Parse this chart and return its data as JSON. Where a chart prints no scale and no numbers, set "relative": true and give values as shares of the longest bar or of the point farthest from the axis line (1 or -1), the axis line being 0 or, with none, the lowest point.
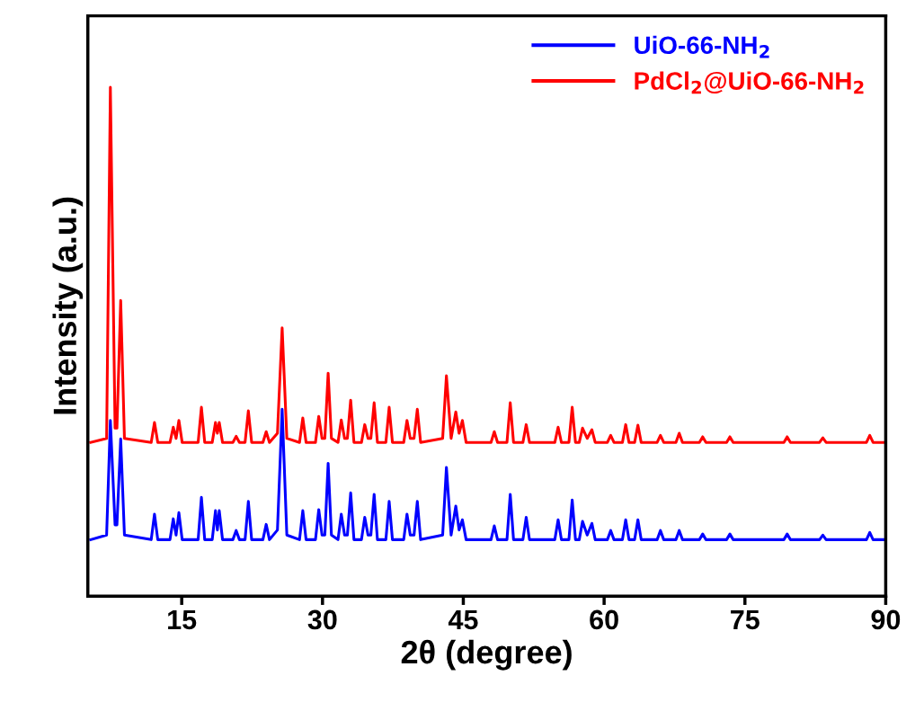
{
  "chart_data": {
    "type": "line",
    "relative": true,
    "xlabel": "2θ (degree)",
    "ylabel": "Intensity (a.u.)",
    "xlim": [
      5,
      90
    ],
    "xticks": [
      15,
      30,
      45,
      60,
      75,
      90
    ],
    "grid": false,
    "legend": "top right",
    "marker": "none",
    "line_style": "solid",
    "x": [
      5.3,
      7.0,
      7.4,
      7.9,
      8.1,
      8.5,
      8.9,
      11.75,
      12.1,
      12.45,
      13.75,
      14.1,
      14.4,
      14.7,
      15.05,
      16.75,
      17.1,
      17.45,
      18.25,
      18.6,
      18.8,
      19.0,
      19.35,
      20.45,
      20.8,
      21.15,
      21.75,
      22.1,
      22.45,
      23.65,
      24.0,
      24.35,
      25.2,
      25.7,
      26.2,
      27.55,
      27.9,
      28.25,
      29.25,
      29.6,
      29.95,
      30.25,
      30.6,
      30.95,
      31.65,
      32.0,
      32.35,
      32.65,
      33.0,
      33.35,
      34.15,
      34.5,
      34.85,
      35.15,
      35.5,
      35.85,
      36.75,
      37.1,
      37.45,
      38.65,
      39.0,
      39.35,
      39.75,
      40.1,
      40.45,
      42.8,
      43.2,
      43.7,
      44.2,
      44.55,
      44.9,
      45.3,
      47.95,
      48.3,
      48.65,
      49.65,
      50.0,
      50.35,
      51.35,
      51.7,
      52.05,
      54.75,
      55.1,
      55.45,
      56.25,
      56.6,
      56.95,
      57.35,
      57.7,
      58.2,
      58.7,
      59.05,
      60.35,
      60.7,
      61.05,
      61.95,
      62.3,
      62.65,
      63.25,
      63.6,
      63.95,
      65.65,
      66.0,
      66.35,
      67.65,
      68.0,
      68.35,
      70.15,
      70.5,
      70.85,
      73.05,
      73.4,
      73.75,
      79.15,
      79.5,
      79.85,
      82.95,
      83.3,
      83.65,
      87.95,
      88.3,
      88.65,
      89.8
    ],
    "series": [
      {
        "name": "UiO-66-NH$_{2}$",
        "color": "#0000ff",
        "values": [
          0.111,
          0.12,
          0.345,
          0.14,
          0.14,
          0.309,
          0.12,
          0.111,
          0.161,
          0.111,
          0.111,
          0.152,
          0.12,
          0.164,
          0.111,
          0.111,
          0.194,
          0.111,
          0.111,
          0.168,
          0.13,
          0.168,
          0.111,
          0.111,
          0.129,
          0.111,
          0.111,
          0.186,
          0.111,
          0.111,
          0.141,
          0.111,
          0.13,
          0.367,
          0.12,
          0.111,
          0.168,
          0.111,
          0.111,
          0.17,
          0.12,
          0.12,
          0.261,
          0.12,
          0.111,
          0.161,
          0.12,
          0.12,
          0.203,
          0.111,
          0.111,
          0.155,
          0.12,
          0.12,
          0.2,
          0.111,
          0.111,
          0.186,
          0.111,
          0.111,
          0.161,
          0.12,
          0.12,
          0.186,
          0.111,
          0.12,
          0.253,
          0.12,
          0.177,
          0.13,
          0.15,
          0.111,
          0.111,
          0.138,
          0.111,
          0.111,
          0.2,
          0.111,
          0.111,
          0.155,
          0.111,
          0.111,
          0.15,
          0.111,
          0.111,
          0.189,
          0.111,
          0.111,
          0.147,
          0.12,
          0.143,
          0.111,
          0.111,
          0.129,
          0.111,
          0.111,
          0.15,
          0.111,
          0.111,
          0.15,
          0.111,
          0.111,
          0.129,
          0.111,
          0.111,
          0.129,
          0.111,
          0.111,
          0.122,
          0.111,
          0.111,
          0.122,
          0.111,
          0.111,
          0.122,
          0.111,
          0.111,
          0.12,
          0.111,
          0.111,
          0.125,
          0.111,
          0.111
        ]
      },
      {
        "name": "PdCl$_{2}$@UiO-66-NH$_{2}$",
        "color": "#ff0000",
        "values": [
          0.302,
          0.31,
          1.0,
          0.33,
          0.33,
          0.581,
          0.31,
          0.302,
          0.341,
          0.302,
          0.302,
          0.332,
          0.31,
          0.345,
          0.302,
          0.302,
          0.371,
          0.302,
          0.302,
          0.341,
          0.32,
          0.341,
          0.302,
          0.302,
          0.314,
          0.302,
          0.302,
          0.364,
          0.302,
          0.302,
          0.323,
          0.302,
          0.32,
          0.527,
          0.31,
          0.302,
          0.35,
          0.302,
          0.302,
          0.353,
          0.31,
          0.31,
          0.438,
          0.31,
          0.302,
          0.346,
          0.31,
          0.31,
          0.385,
          0.302,
          0.302,
          0.337,
          0.31,
          0.31,
          0.38,
          0.302,
          0.302,
          0.371,
          0.302,
          0.302,
          0.345,
          0.31,
          0.31,
          0.367,
          0.302,
          0.31,
          0.433,
          0.31,
          0.362,
          0.32,
          0.345,
          0.302,
          0.302,
          0.323,
          0.302,
          0.302,
          0.38,
          0.302,
          0.302,
          0.337,
          0.302,
          0.302,
          0.332,
          0.302,
          0.302,
          0.371,
          0.302,
          0.302,
          0.33,
          0.31,
          0.327,
          0.302,
          0.302,
          0.316,
          0.302,
          0.302,
          0.337,
          0.302,
          0.302,
          0.336,
          0.302,
          0.302,
          0.316,
          0.302,
          0.302,
          0.32,
          0.302,
          0.302,
          0.313,
          0.302,
          0.302,
          0.313,
          0.302,
          0.302,
          0.313,
          0.302,
          0.302,
          0.311,
          0.302,
          0.302,
          0.316,
          0.302,
          0.302
        ]
      }
    ]
  }
}
